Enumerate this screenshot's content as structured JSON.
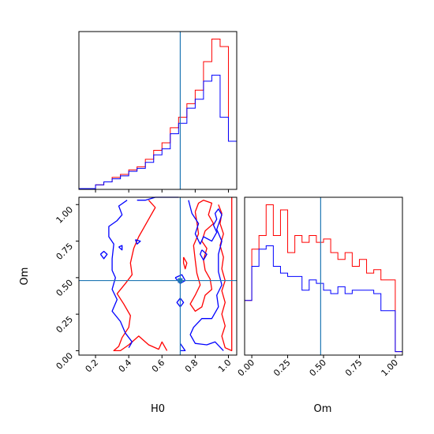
{
  "chart_data": {
    "type": "corner",
    "parameters": [
      "H0",
      "Om"
    ],
    "truth": {
      "H0": 0.71,
      "Om": 0.48
    },
    "colors": {
      "series_a": "#ff0000",
      "series_b": "#0000ff",
      "truth": "#1f77b4"
    },
    "panels": [
      {
        "id": "H0-marginal",
        "type": "histogram-step",
        "xlim": [
          0.1,
          1.05
        ],
        "bin_edges": [
          0.1,
          0.2,
          0.25,
          0.3,
          0.35,
          0.4,
          0.45,
          0.5,
          0.55,
          0.6,
          0.65,
          0.7,
          0.75,
          0.8,
          0.85,
          0.9,
          0.95,
          1.0,
          1.05
        ],
        "series": [
          {
            "color": "red",
            "values": [
              0.005,
              0.03,
              0.05,
              0.08,
              0.1,
              0.13,
              0.15,
              0.2,
              0.26,
              0.31,
              0.41,
              0.48,
              0.57,
              0.66,
              0.85,
              1.0,
              0.95,
              0.32
            ]
          },
          {
            "color": "blue",
            "values": [
              0.005,
              0.03,
              0.05,
              0.07,
              0.09,
              0.12,
              0.14,
              0.18,
              0.23,
              0.27,
              0.37,
              0.44,
              0.54,
              0.6,
              0.72,
              0.76,
              0.48,
              0.32
            ]
          }
        ]
      },
      {
        "id": "Om-marginal",
        "type": "histogram-step",
        "xlim": [
          -0.05,
          1.05
        ],
        "bin_edges": [
          -0.05,
          0.0,
          0.05,
          0.1,
          0.15,
          0.2,
          0.25,
          0.3,
          0.35,
          0.4,
          0.45,
          0.5,
          0.55,
          0.6,
          0.65,
          0.7,
          0.75,
          0.8,
          0.85,
          0.9,
          0.95,
          1.0,
          1.05
        ],
        "series": [
          {
            "color": "red",
            "values": [
              0.32,
              0.62,
              0.7,
              0.88,
              0.7,
              0.85,
              0.6,
              0.7,
              0.66,
              0.7,
              0.66,
              0.68,
              0.6,
              0.56,
              0.6,
              0.52,
              0.56,
              0.48,
              0.5,
              0.44,
              0.44,
              0.02
            ]
          },
          {
            "color": "blue",
            "values": [
              0.32,
              0.52,
              0.62,
              0.64,
              0.52,
              0.48,
              0.46,
              0.46,
              0.38,
              0.44,
              0.42,
              0.38,
              0.36,
              0.4,
              0.36,
              0.38,
              0.38,
              0.38,
              0.36,
              0.26,
              0.26,
              0.02
            ]
          }
        ]
      },
      {
        "id": "H0-Om-joint",
        "type": "contour",
        "xlim": [
          0.1,
          1.05
        ],
        "ylim": [
          -0.03,
          1.05
        ],
        "series": [
          {
            "color": "red",
            "contours": [
              [
                [
                  0.52,
                  1.03
                ],
                [
                  0.56,
                  0.98
                ],
                [
                  0.53,
                  0.92
                ],
                [
                  0.49,
                  0.84
                ],
                [
                  0.46,
                  0.78
                ],
                [
                  0.43,
                  0.7
                ],
                [
                  0.41,
                  0.6
                ],
                [
                  0.42,
                  0.52
                ],
                [
                  0.38,
                  0.46
                ],
                [
                  0.33,
                  0.39
                ],
                [
                  0.37,
                  0.32
                ],
                [
                  0.41,
                  0.24
                ],
                [
                  0.4,
                  0.16
                ],
                [
                  0.36,
                  0.09
                ],
                [
                  0.34,
                  0.03
                ],
                [
                  0.31,
                  0.0
                ],
                [
                  0.35,
                  0.0
                ],
                [
                  0.4,
                  0.04
                ],
                [
                  0.46,
                  0.1
                ],
                [
                  0.52,
                  0.04
                ],
                [
                  0.58,
                  0.01
                ],
                [
                  0.6,
                  0.06
                ],
                [
                  0.63,
                  0.0
                ]
              ],
              [
                [
                  0.73,
                  0.64
                ],
                [
                  0.75,
                  0.6
                ],
                [
                  0.74,
                  0.56
                ],
                [
                  0.73,
                  0.6
                ],
                [
                  0.73,
                  0.64
                ]
              ],
              [
                [
                  0.8,
                  0.95
                ],
                [
                  0.82,
                  1.01
                ],
                [
                  0.85,
                  1.03
                ],
                [
                  0.9,
                  1.01
                ],
                [
                  0.88,
                  0.93
                ],
                [
                  0.91,
                  0.87
                ],
                [
                  0.86,
                  0.82
                ],
                [
                  0.84,
                  0.75
                ],
                [
                  0.87,
                  0.7
                ],
                [
                  0.85,
                  0.62
                ],
                [
                  0.86,
                  0.55
                ],
                [
                  0.89,
                  0.49
                ],
                [
                  0.9,
                  0.42
                ],
                [
                  0.86,
                  0.38
                ],
                [
                  0.84,
                  0.3
                ],
                [
                  0.8,
                  0.27
                ],
                [
                  0.77,
                  0.32
                ],
                [
                  0.8,
                  0.38
                ],
                [
                  0.83,
                  0.45
                ],
                [
                  0.81,
                  0.53
                ],
                [
                  0.8,
                  0.62
                ],
                [
                  0.79,
                  0.72
                ],
                [
                  0.82,
                  0.8
                ],
                [
                  0.81,
                  0.88
                ],
                [
                  0.8,
                  0.95
                ]
              ],
              [
                [
                  0.94,
                  1.0
                ],
                [
                  0.96,
                  0.94
                ],
                [
                  0.95,
                  0.87
                ],
                [
                  0.97,
                  0.8
                ],
                [
                  0.95,
                  0.72
                ],
                [
                  0.97,
                  0.64
                ],
                [
                  0.96,
                  0.56
                ],
                [
                  0.98,
                  0.48
                ],
                [
                  0.96,
                  0.41
                ],
                [
                  0.98,
                  0.33
                ],
                [
                  0.96,
                  0.25
                ],
                [
                  0.98,
                  0.17
                ],
                [
                  0.96,
                  0.1
                ],
                [
                  0.98,
                  0.02
                ],
                [
                  1.02,
                  0.0
                ],
                [
                  1.02,
                  1.05
                ]
              ]
            ]
          },
          {
            "color": "blue",
            "contours": [
              [
                [
                  0.39,
                  1.03
                ],
                [
                  0.34,
                  0.99
                ],
                [
                  0.36,
                  0.93
                ],
                [
                  0.33,
                  0.89
                ],
                [
                  0.28,
                  0.85
                ],
                [
                  0.28,
                  0.78
                ],
                [
                  0.31,
                  0.73
                ],
                [
                  0.3,
                  0.63
                ],
                [
                  0.3,
                  0.55
                ],
                [
                  0.32,
                  0.5
                ],
                [
                  0.3,
                  0.42
                ],
                [
                  0.33,
                  0.35
                ],
                [
                  0.3,
                  0.27
                ],
                [
                  0.35,
                  0.2
                ],
                [
                  0.38,
                  0.12
                ],
                [
                  0.42,
                  0.06
                ],
                [
                  0.4,
                  0.02
                ]
              ],
              [
                [
                  0.45,
                  1.03
                ],
                [
                  0.5,
                  1.03
                ],
                [
                  0.56,
                  1.05
                ],
                [
                  0.7,
                  1.05
                ]
              ],
              [
                [
                  0.23,
                  0.66
                ],
                [
                  0.25,
                  0.63
                ],
                [
                  0.27,
                  0.66
                ],
                [
                  0.25,
                  0.68
                ],
                [
                  0.23,
                  0.66
                ]
              ],
              [
                [
                  0.34,
                  0.71
                ],
                [
                  0.36,
                  0.69
                ],
                [
                  0.36,
                  0.72
                ],
                [
                  0.34,
                  0.71
                ]
              ],
              [
                [
                  0.44,
                  0.76
                ],
                [
                  0.47,
                  0.75
                ],
                [
                  0.45,
                  0.73
                ],
                [
                  0.44,
                  0.76
                ]
              ],
              [
                [
                  0.84,
                  0.69
                ],
                [
                  0.87,
                  0.66
                ],
                [
                  0.85,
                  0.62
                ],
                [
                  0.83,
                  0.66
                ],
                [
                  0.84,
                  0.69
                ]
              ],
              [
                [
                  0.76,
                  1.03
                ],
                [
                  0.78,
                  0.94
                ],
                [
                  0.82,
                  0.87
                ],
                [
                  0.8,
                  0.8
                ],
                [
                  0.83,
                  0.73
                ],
                [
                  0.85,
                  0.78
                ],
                [
                  0.9,
                  0.75
                ],
                [
                  0.93,
                  0.81
                ],
                [
                  0.91,
                  0.86
                ],
                [
                  0.93,
                  0.9
                ],
                [
                  0.92,
                  0.94
                ],
                [
                  0.94,
                  0.97
                ],
                [
                  0.96,
                  0.93
                ],
                [
                  0.93,
                  0.83
                ],
                [
                  0.96,
                  0.75
                ],
                [
                  0.94,
                  0.66
                ],
                [
                  0.94,
                  0.54
                ],
                [
                  0.96,
                  0.45
                ],
                [
                  0.93,
                  0.38
                ],
                [
                  0.94,
                  0.3
                ],
                [
                  0.9,
                  0.22
                ],
                [
                  0.84,
                  0.22
                ],
                [
                  0.79,
                  0.16
                ],
                [
                  0.77,
                  0.11
                ],
                [
                  0.8,
                  0.05
                ],
                [
                  0.87,
                  0.04
                ],
                [
                  0.92,
                  0.06
                ],
                [
                  0.97,
                  0.0
                ]
              ],
              [
                [
                  0.71,
                  0.36
                ],
                [
                  0.73,
                  0.33
                ],
                [
                  0.71,
                  0.3
                ],
                [
                  0.69,
                  0.33
                ],
                [
                  0.71,
                  0.36
                ]
              ],
              [
                [
                  0.71,
                  0.05
                ],
                [
                  0.74,
                  0.0
                ],
                [
                  0.71,
                  0.0
                ]
              ],
              [
                [
                  0.68,
                  0.5
                ],
                [
                  0.71,
                  0.46
                ],
                [
                  0.74,
                  0.48
                ],
                [
                  0.72,
                  0.52
                ],
                [
                  0.68,
                  0.5
                ]
              ]
            ]
          }
        ]
      }
    ],
    "xlabels": {
      "H0-Om-joint": "H0",
      "Om-marginal": "Om"
    },
    "ylabels": {
      "H0-Om-joint": "Om"
    },
    "ticks": {
      "H0": [
        "0.2",
        "0.4",
        "0.6",
        "0.8",
        "1.0"
      ],
      "Om": [
        "0.00",
        "0.25",
        "0.50",
        "0.75",
        "1.00"
      ]
    }
  }
}
